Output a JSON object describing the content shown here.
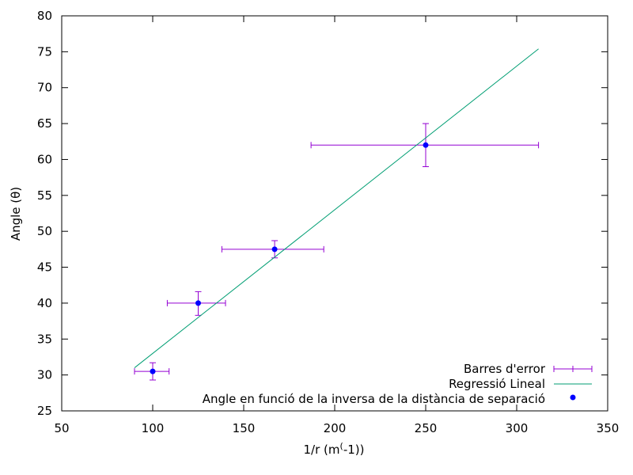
{
  "chart_data": {
    "type": "scatter",
    "xlabel": "1/r (m^(-1))",
    "ylabel": "Angle (θ)",
    "xlim": [
      50,
      350
    ],
    "ylim": [
      25,
      80
    ],
    "x_ticks": [
      50,
      100,
      150,
      200,
      250,
      300,
      350
    ],
    "y_ticks": [
      25,
      30,
      35,
      40,
      45,
      50,
      55,
      60,
      65,
      70,
      75,
      80
    ],
    "x_tick_labels": [
      "50",
      "100",
      "150",
      "200",
      "250",
      "300",
      "350"
    ],
    "y_tick_labels": [
      "25",
      "30",
      "35",
      "40",
      "45",
      "50",
      "55",
      "60",
      "65",
      "70",
      "75",
      "80"
    ],
    "grid": false,
    "legend_position": "bottom-right",
    "series": [
      {
        "name": "Barres d'error",
        "kind": "errorbars",
        "color": "#9400d3",
        "points": [
          {
            "x": 100,
            "y": 30.5,
            "xmin": 90,
            "xmax": 109,
            "ymin": 29.3,
            "ymax": 31.7
          },
          {
            "x": 125,
            "y": 40,
            "xmin": 108,
            "xmax": 140,
            "ymin": 38.3,
            "ymax": 41.6
          },
          {
            "x": 167,
            "y": 47.5,
            "xmin": 138,
            "xmax": 194,
            "ymin": 46.3,
            "ymax": 48.7
          },
          {
            "x": 250,
            "y": 62,
            "xmin": 187,
            "xmax": 312,
            "ymin": 59,
            "ymax": 65
          }
        ]
      },
      {
        "name": "Regressió Lineal",
        "kind": "line",
        "color": "#009e73",
        "x": [
          90,
          312
        ],
        "y": [
          31,
          75.4
        ]
      },
      {
        "name": "Angle en funció de la inversa de la distància de separació",
        "kind": "points",
        "color": "#0000ff",
        "x": [
          100,
          125,
          167,
          250
        ],
        "y": [
          30.5,
          40,
          47.5,
          62
        ]
      }
    ]
  }
}
